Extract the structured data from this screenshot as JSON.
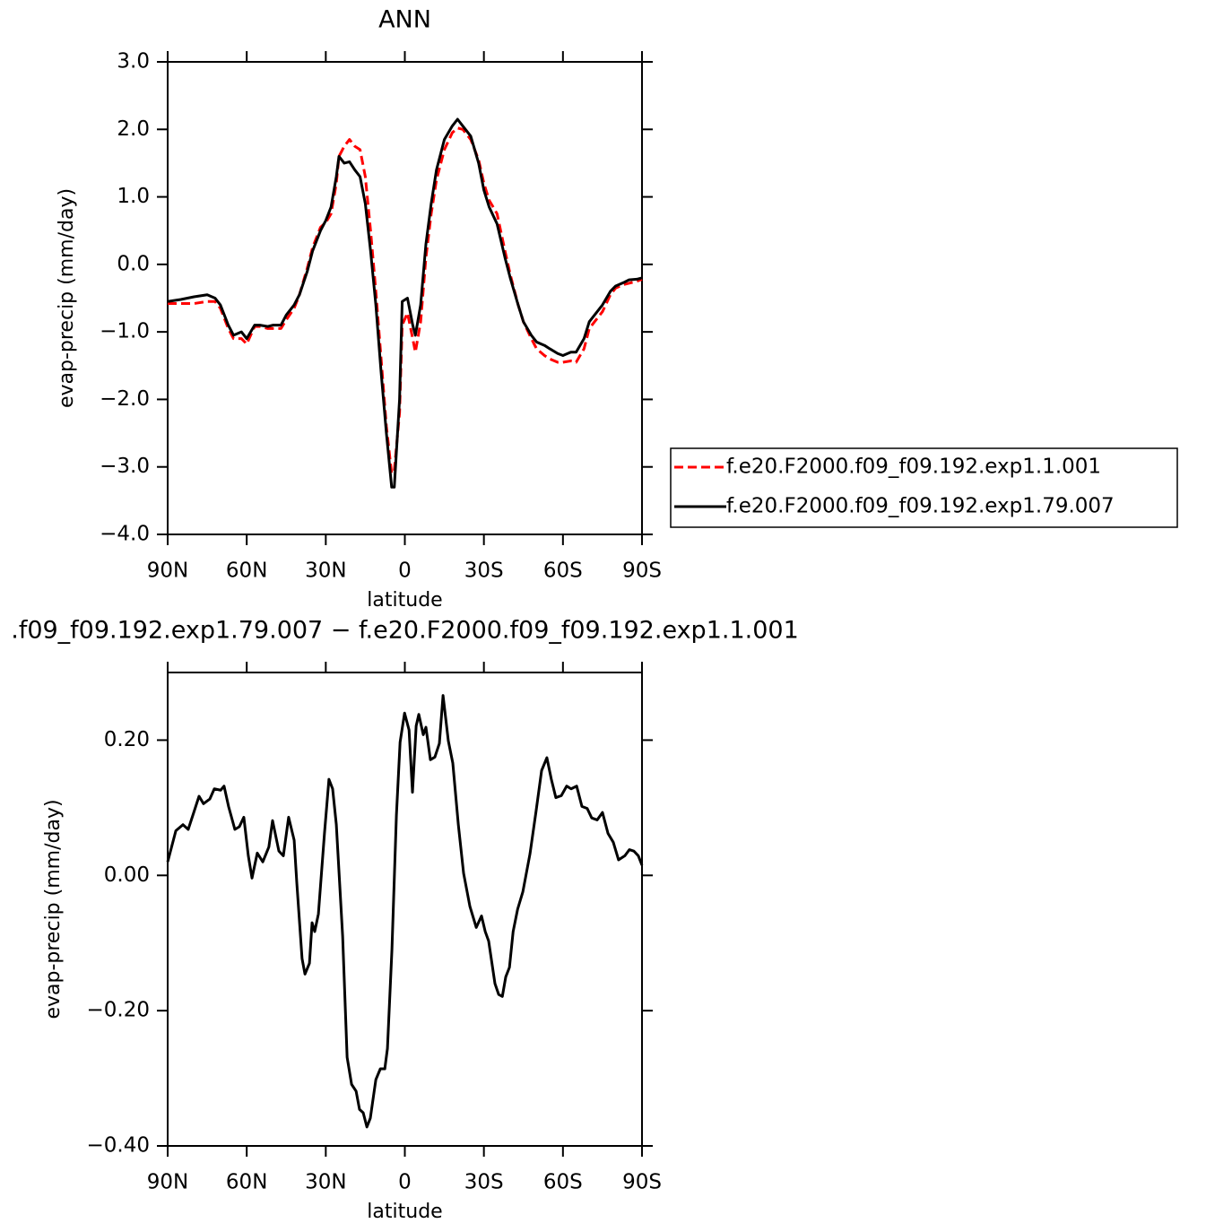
{
  "chart_data": [
    {
      "type": "line",
      "title": "ANN",
      "xlabel": "latitude",
      "ylabel": "evap-precip (mm/day)",
      "xlim": [
        90,
        -90
      ],
      "ylim": [
        -4,
        3
      ],
      "xticks": [
        {
          "value": 90,
          "label": "90N"
        },
        {
          "value": 60,
          "label": "60N"
        },
        {
          "value": 30,
          "label": "30N"
        },
        0,
        {
          "value": -30,
          "label": "30S"
        },
        {
          "value": -60,
          "label": "60S"
        },
        {
          "value": -90,
          "label": "90S"
        }
      ],
      "yticks": [
        {
          "value": 3,
          "label": "3.0"
        },
        {
          "value": 2,
          "label": "2.0"
        },
        {
          "value": 1,
          "label": "1.0"
        },
        {
          "value": 0,
          "label": "0.0"
        },
        {
          "value": -1,
          "label": "−1.0"
        },
        {
          "value": -2,
          "label": "−2.0"
        },
        {
          "value": -3,
          "label": "−3.0"
        },
        {
          "value": -4,
          "label": "−4.0"
        }
      ],
      "legend": "right",
      "x": [
        90,
        85,
        80,
        75,
        72,
        70,
        67,
        65,
        62,
        60,
        57,
        55,
        52,
        50,
        47,
        45,
        42,
        40,
        37,
        35,
        32,
        30,
        28,
        26,
        25,
        23,
        21,
        19,
        17,
        15,
        13,
        11,
        9,
        7,
        5,
        4,
        2,
        1,
        -1,
        -3,
        -4,
        -6,
        -8,
        -10,
        -12,
        -15,
        -18,
        -20,
        -22,
        -25,
        -28,
        -30,
        -32,
        -35,
        -38,
        -40,
        -43,
        -45,
        -48,
        -50,
        -53,
        -55,
        -58,
        -60,
        -63,
        -65,
        -68,
        -70,
        -72,
        -75,
        -78,
        -80,
        -83,
        -85,
        -88,
        -90
      ],
      "series": [
        {
          "name": "f.e20.F2000.f09_f09.192.exp1.1.001",
          "color": "#ff0000",
          "dashed": true,
          "values": [
            -0.58,
            -0.58,
            -0.58,
            -0.55,
            -0.55,
            -0.65,
            -0.95,
            -1.1,
            -1.1,
            -1.18,
            -0.92,
            -0.92,
            -0.95,
            -0.95,
            -0.95,
            -0.82,
            -0.65,
            -0.45,
            -0.05,
            0.25,
            0.55,
            0.62,
            0.75,
            1.2,
            1.6,
            1.75,
            1.85,
            1.75,
            1.7,
            1.3,
            0.5,
            -0.4,
            -1.4,
            -2.4,
            -3.1,
            -3.05,
            -2.2,
            -0.9,
            -0.72,
            -1.1,
            -1.3,
            -0.85,
            0.1,
            0.75,
            1.25,
            1.7,
            1.95,
            2.02,
            2.0,
            1.85,
            1.55,
            1.2,
            0.95,
            0.75,
            0.2,
            -0.15,
            -0.6,
            -0.85,
            -1.1,
            -1.25,
            -1.35,
            -1.4,
            -1.45,
            -1.45,
            -1.43,
            -1.45,
            -1.25,
            -0.95,
            -0.85,
            -0.7,
            -0.45,
            -0.35,
            -0.3,
            -0.28,
            -0.25,
            -0.22
          ]
        },
        {
          "name": "f.e20.F2000.f09_f09.192.exp1.79.007",
          "color": "#000000",
          "dashed": false,
          "values": [
            -0.55,
            -0.52,
            -0.48,
            -0.45,
            -0.5,
            -0.6,
            -0.9,
            -1.05,
            -1.0,
            -1.1,
            -0.9,
            -0.9,
            -0.92,
            -0.9,
            -0.9,
            -0.75,
            -0.6,
            -0.45,
            -0.1,
            0.2,
            0.5,
            0.65,
            0.85,
            1.3,
            1.6,
            1.5,
            1.52,
            1.4,
            1.3,
            0.9,
            0.2,
            -0.6,
            -1.6,
            -2.5,
            -3.3,
            -3.3,
            -2.0,
            -0.55,
            -0.5,
            -0.9,
            -1.05,
            -0.6,
            0.3,
            0.9,
            1.4,
            1.85,
            2.05,
            2.15,
            2.05,
            1.9,
            1.5,
            1.1,
            0.85,
            0.6,
            0.1,
            -0.2,
            -0.6,
            -0.85,
            -1.05,
            -1.15,
            -1.2,
            -1.25,
            -1.32,
            -1.35,
            -1.3,
            -1.3,
            -1.1,
            -0.85,
            -0.75,
            -0.6,
            -0.4,
            -0.32,
            -0.27,
            -0.23,
            -0.22,
            -0.2
          ]
        }
      ]
    },
    {
      "type": "line",
      "title": ".f09_f09.192.exp1.79.007 − f.e20.F2000.f09_f09.192.exp1.1.001",
      "xlabel": "latitude",
      "ylabel": "evap-precip (mm/day)",
      "xlim": [
        90,
        -90
      ],
      "ylim": [
        -0.4,
        0.3
      ],
      "xticks": [
        {
          "value": 90,
          "label": "90N"
        },
        {
          "value": 60,
          "label": "60N"
        },
        {
          "value": 30,
          "label": "30N"
        },
        0,
        {
          "value": -30,
          "label": "30S"
        },
        {
          "value": -60,
          "label": "60S"
        },
        {
          "value": -90,
          "label": "90S"
        }
      ],
      "yticks": [
        {
          "value": 0.2,
          "label": "0.20"
        },
        {
          "value": 0,
          "label": "0.00"
        },
        {
          "value": -0.2,
          "label": "−0.20"
        },
        {
          "value": -0.4,
          "label": "−0.40"
        }
      ],
      "x": [
        90,
        86.9,
        84.2,
        82.2,
        80.1,
        78.1,
        76.4,
        74.0,
        72.3,
        69.9,
        68.6,
        66.9,
        64.5,
        62.8,
        61.1,
        59.4,
        58.0,
        56.0,
        53.9,
        51.6,
        50.2,
        47.8,
        46.1,
        44.1,
        42.0,
        41.0,
        39.0,
        37.9,
        36.2,
        35.2,
        34.2,
        32.8,
        30.5,
        28.8,
        27.4,
        26.0,
        23.6,
        21.9,
        20.2,
        18.5,
        17.2,
        15.8,
        14.4,
        13.1,
        11.0,
        9.3,
        7.6,
        6.6,
        4.9,
        3.2,
        1.8,
        0.1,
        -1.6,
        -2.9,
        -4.3,
        -5.3,
        -7.0,
        -8.0,
        -9.7,
        -11.4,
        -13.1,
        -14.5,
        -16.5,
        -18.2,
        -20.3,
        -22.3,
        -24.7,
        -27.1,
        -29.1,
        -30.5,
        -31.8,
        -34.2,
        -35.6,
        -37.0,
        -38.3,
        -39.7,
        -41.1,
        -42.8,
        -44.8,
        -47.5,
        -49.8,
        -51.9,
        -53.9,
        -55.6,
        -57.3,
        -59.4,
        -61.4,
        -63.1,
        -65.2,
        -67.2,
        -69.2,
        -70.9,
        -73.0,
        -75.0,
        -77.1,
        -79.1,
        -81.1,
        -83.5,
        -85.2,
        -86.9,
        -88.6,
        -90
      ],
      "series": [
        {
          "color": "#000000",
          "dashed": false,
          "values": [
            0.02,
            0.066,
            0.075,
            0.068,
            0.093,
            0.117,
            0.106,
            0.113,
            0.128,
            0.126,
            0.132,
            0.102,
            0.068,
            0.072,
            0.086,
            0.029,
            -0.004,
            0.033,
            0.02,
            0.042,
            0.081,
            0.036,
            0.029,
            0.086,
            0.052,
            -0.011,
            -0.123,
            -0.146,
            -0.13,
            -0.07,
            -0.083,
            -0.057,
            0.062,
            0.142,
            0.128,
            0.075,
            -0.09,
            -0.269,
            -0.309,
            -0.319,
            -0.346,
            -0.351,
            -0.372,
            -0.359,
            -0.302,
            -0.286,
            -0.286,
            -0.256,
            -0.11,
            0.089,
            0.197,
            0.24,
            0.215,
            0.123,
            0.221,
            0.238,
            0.208,
            0.219,
            0.171,
            0.175,
            0.195,
            0.266,
            0.199,
            0.166,
            0.075,
            0.003,
            -0.046,
            -0.077,
            -0.06,
            -0.083,
            -0.097,
            -0.16,
            -0.176,
            -0.179,
            -0.15,
            -0.136,
            -0.083,
            -0.05,
            -0.024,
            0.032,
            0.095,
            0.155,
            0.174,
            0.142,
            0.115,
            0.118,
            0.132,
            0.128,
            0.132,
            0.102,
            0.099,
            0.085,
            0.082,
            0.093,
            0.062,
            0.049,
            0.023,
            0.029,
            0.038,
            0.036,
            0.029,
            0.015
          ]
        }
      ]
    }
  ]
}
